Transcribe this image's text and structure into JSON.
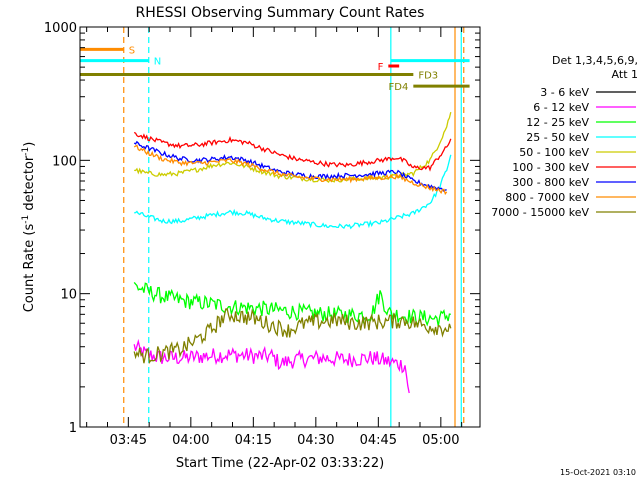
{
  "chart_data": {
    "type": "line",
    "title": "RHESSI Observing Summary Count Rates",
    "xlabel": "Start Time (22-Apr-02 03:33:22)",
    "ylabel": "Count Rate (s",
    "ylabel_sup": "-1",
    "ylabel_mid": " detector",
    "ylabel_end": ")",
    "yscale": "log",
    "ylim": [
      1,
      1000
    ],
    "xlim_minutes": [
      0,
      96
    ],
    "yticks": [
      {
        "value": 1,
        "label": "1"
      },
      {
        "value": 10,
        "label": "10"
      },
      {
        "value": 100,
        "label": "100"
      },
      {
        "value": 1000,
        "label": "1000"
      }
    ],
    "xticks": [
      {
        "minute": 11.6,
        "label": "03:45"
      },
      {
        "minute": 26.6,
        "label": "04:00"
      },
      {
        "minute": 41.6,
        "label": "04:15"
      },
      {
        "minute": 56.6,
        "label": "04:30"
      },
      {
        "minute": 71.6,
        "label": "04:45"
      },
      {
        "minute": 86.6,
        "label": "05:00"
      }
    ],
    "legend_title": [
      "Det 1,3,4,5,6,9,",
      "Att 1"
    ],
    "legend_position": "right",
    "timestamp": "15-Oct-2021 03:10",
    "series": [
      {
        "name": "3 - 6 keV",
        "color": "#000000",
        "x": [],
        "y": []
      },
      {
        "name": "6 - 12 keV",
        "color": "#ff00ff",
        "x": [
          13,
          16,
          20,
          25,
          30,
          36,
          42,
          46,
          48,
          52,
          58,
          64,
          70,
          76,
          78,
          79
        ],
        "y": [
          4.0,
          3.5,
          3.3,
          3.3,
          3.4,
          3.5,
          3.4,
          3.4,
          3.0,
          3.2,
          3.3,
          3.2,
          3.3,
          3.0,
          2.9,
          1.8
        ]
      },
      {
        "name": "12 - 25 keV",
        "color": "#00ff00",
        "x": [
          13,
          16,
          20,
          25,
          30,
          36,
          42,
          48,
          54,
          60,
          66,
          70,
          72,
          74,
          78,
          82,
          86,
          89
        ],
        "y": [
          11.5,
          10.5,
          9.5,
          8.8,
          8.5,
          8.0,
          7.8,
          7.5,
          7.2,
          7.0,
          6.9,
          7.0,
          10.0,
          7.2,
          6.8,
          6.6,
          6.5,
          7.0
        ]
      },
      {
        "name": "25 - 50 keV",
        "color": "#00ffff",
        "x": [
          13,
          16,
          20,
          24,
          28,
          32,
          36,
          40,
          44,
          48,
          52,
          56,
          60,
          64,
          68,
          72,
          76,
          80,
          84,
          86,
          88,
          89
        ],
        "y": [
          41,
          38,
          35,
          35,
          37,
          39,
          41,
          40,
          37,
          35,
          34,
          33,
          32,
          32,
          33,
          34,
          37,
          40,
          48,
          60,
          85,
          110
        ]
      },
      {
        "name": "50 - 100 keV",
        "color": "#cccc00",
        "x": [
          13,
          16,
          20,
          24,
          28,
          32,
          36,
          40,
          44,
          48,
          52,
          56,
          60,
          64,
          68,
          72,
          76,
          80,
          84,
          86,
          88,
          89
        ],
        "y": [
          85,
          80,
          78,
          80,
          85,
          92,
          96,
          90,
          82,
          76,
          74,
          72,
          71,
          72,
          73,
          74,
          76,
          80,
          100,
          130,
          180,
          230
        ]
      },
      {
        "name": "100 - 300 keV",
        "color": "#ff0000",
        "x": [
          13,
          16,
          20,
          24,
          28,
          32,
          36,
          40,
          44,
          48,
          52,
          56,
          60,
          64,
          68,
          72,
          76,
          78,
          80,
          84,
          86,
          88,
          89
        ],
        "y": [
          160,
          148,
          135,
          128,
          130,
          136,
          142,
          136,
          122,
          110,
          102,
          97,
          93,
          92,
          96,
          100,
          105,
          98,
          88,
          88,
          105,
          125,
          145
        ]
      },
      {
        "name": "300 - 800 keV",
        "color": "#0000ff",
        "x": [
          13,
          16,
          20,
          24,
          28,
          32,
          36,
          40,
          44,
          48,
          52,
          56,
          60,
          64,
          68,
          72,
          76,
          80,
          84,
          86,
          88
        ],
        "y": [
          135,
          125,
          112,
          103,
          100,
          102,
          106,
          100,
          90,
          82,
          78,
          76,
          76,
          77,
          78,
          80,
          82,
          70,
          64,
          62,
          60
        ]
      },
      {
        "name": "800 - 7000 keV",
        "color": "#ff8c00",
        "x": [
          13,
          16,
          20,
          24,
          28,
          32,
          36,
          40,
          44,
          48,
          52,
          56,
          60,
          64,
          68,
          72,
          76,
          80,
          84,
          86,
          88
        ],
        "y": [
          128,
          115,
          102,
          96,
          95,
          97,
          100,
          94,
          86,
          79,
          75,
          73,
          72,
          72,
          73,
          74,
          76,
          68,
          62,
          60,
          58
        ]
      },
      {
        "name": "7000 - 15000 keV",
        "color": "#808000",
        "x": [
          13,
          16,
          20,
          24,
          28,
          32,
          34,
          36,
          38,
          42,
          46,
          50,
          54,
          58,
          62,
          66,
          70,
          74,
          78,
          82,
          86,
          89
        ],
        "y": [
          3.6,
          3.4,
          3.6,
          3.8,
          4.5,
          5.5,
          6.5,
          7.0,
          6.8,
          6.5,
          5.8,
          5.3,
          6.0,
          6.2,
          6.3,
          6.0,
          6.1,
          6.2,
          6.3,
          5.8,
          5.6,
          5.5
        ]
      }
    ],
    "vlines": [
      {
        "minute": 10.5,
        "color": "#ff8c00",
        "dash": true
      },
      {
        "minute": 16.5,
        "color": "#00ffff",
        "dash": true
      },
      {
        "minute": 74.6,
        "color": "#00ffff",
        "dash": false
      },
      {
        "minute": 90.0,
        "color": "#ff8c00",
        "dash": false
      },
      {
        "minute": 91.5,
        "color": "#00ffff",
        "dash": false
      },
      {
        "minute": 92.1,
        "color": "#ff8c00",
        "dash": true
      }
    ],
    "flag_bars": [
      {
        "label": "S",
        "color": "#ff8c00",
        "x0": 0,
        "x1": 10.5,
        "y": 680,
        "label_at": "end"
      },
      {
        "label": "N",
        "color": "#00ffff",
        "x0": 0,
        "x1": 16.5,
        "y": 560,
        "label_at": "end"
      },
      {
        "label": "F",
        "color": "#ff0000",
        "x0": 74.0,
        "x1": 76.6,
        "y": 510,
        "label_at": "start"
      },
      {
        "label": "",
        "color": "#00ffff",
        "x0": 74.6,
        "x1": 93.5,
        "y": 560,
        "label_at": "none"
      },
      {
        "label": "FD3",
        "color": "#808000",
        "x0": 0,
        "x1": 80.0,
        "y": 440,
        "label_at": "end"
      },
      {
        "label": "FD4",
        "color": "#808000",
        "x0": 80.0,
        "x1": 93.5,
        "y": 360,
        "label_at": "start"
      }
    ]
  }
}
